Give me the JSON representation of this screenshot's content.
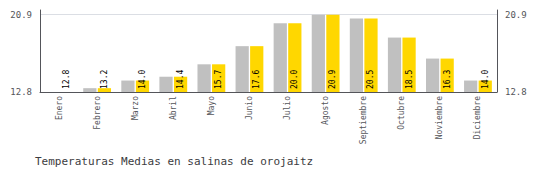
{
  "chart_data": {
    "type": "bar",
    "title": "Temperaturas Medias en salinas de orojaitz",
    "categories": [
      "Enero",
      "Febrero",
      "Marzo",
      "Abril",
      "Mayo",
      "Junio",
      "Julio",
      "Agosto",
      "Septiembre",
      "Octubre",
      "Noviembre",
      "Diciembre"
    ],
    "series": [
      {
        "color": "#C0C0C0",
        "values": [
          12.8,
          13.2,
          14.0,
          14.4,
          15.7,
          17.6,
          20.0,
          20.9,
          20.5,
          18.5,
          16.3,
          14.0
        ]
      },
      {
        "color": "#FFD700",
        "values": [
          12.8,
          13.2,
          14.0,
          14.4,
          15.7,
          17.6,
          20.0,
          20.9,
          20.5,
          18.5,
          16.3,
          14.0
        ],
        "data_labels": true,
        "value_labels": [
          "12.8",
          "13.2",
          "14.0",
          "14.4",
          "15.7",
          "17.6",
          "20.0",
          "20.9",
          "20.5",
          "18.5",
          "16.3",
          "14.0"
        ]
      }
    ],
    "ylim": [
      12.8,
      21.386
    ],
    "yticks": [
      20.9,
      12.8
    ],
    "y2lim": [
      12.8,
      21.386
    ],
    "y2ticks": [
      20.9,
      12.8
    ],
    "grid": true
  }
}
